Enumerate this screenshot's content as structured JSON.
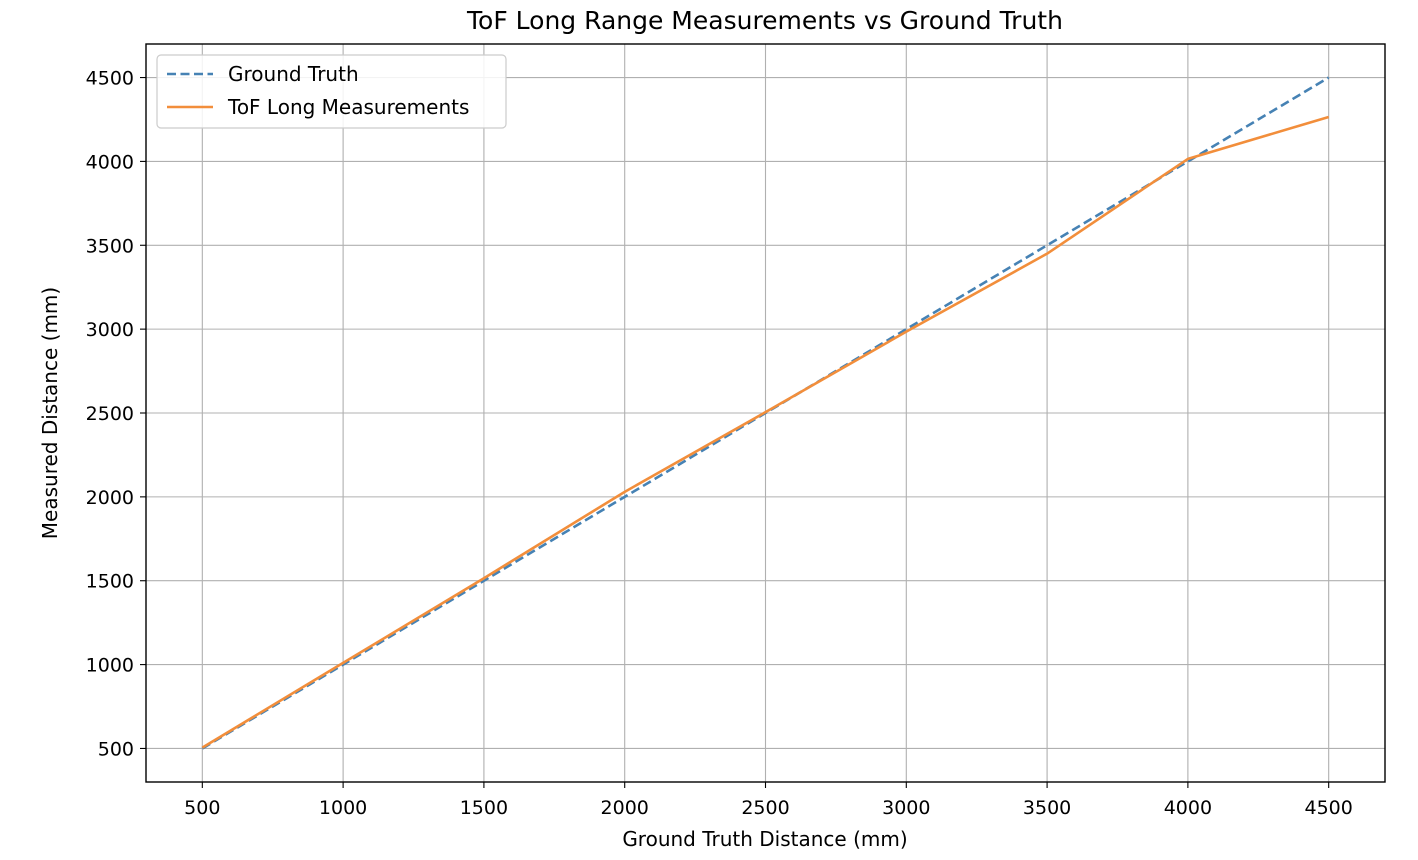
{
  "chart_data": {
    "type": "line",
    "title": "ToF Long Range Measurements vs Ground Truth",
    "xlabel": "Ground Truth Distance (mm)",
    "ylabel": "Measured Distance (mm)",
    "xlim": [
      300,
      4700
    ],
    "ylim": [
      300,
      4700
    ],
    "xticks": [
      500,
      1000,
      1500,
      2000,
      2500,
      3000,
      3500,
      4000,
      4500
    ],
    "yticks": [
      500,
      1000,
      1500,
      2000,
      2500,
      3000,
      3500,
      4000,
      4500
    ],
    "xtick_labels": [
      "500",
      "1000",
      "1500",
      "2000",
      "2500",
      "3000",
      "3500",
      "4000",
      "4500"
    ],
    "ytick_labels": [
      "500",
      "1000",
      "1500",
      "2000",
      "2500",
      "3000",
      "3500",
      "4000",
      "4500"
    ],
    "grid": true,
    "legend_position": "upper-left",
    "x": [
      500,
      1000,
      1500,
      2000,
      2500,
      3000,
      3500,
      4000,
      4500
    ],
    "series": [
      {
        "name": "Ground Truth",
        "style": "dashed",
        "color": "#4682b4",
        "values": [
          500,
          1000,
          1500,
          2000,
          2500,
          3000,
          3500,
          4000,
          4500
        ]
      },
      {
        "name": "ToF Long Measurements",
        "style": "solid",
        "color": "#f28e3b",
        "values": [
          505,
          1010,
          1515,
          2030,
          2505,
          2985,
          3450,
          4015,
          4265
        ]
      }
    ]
  }
}
